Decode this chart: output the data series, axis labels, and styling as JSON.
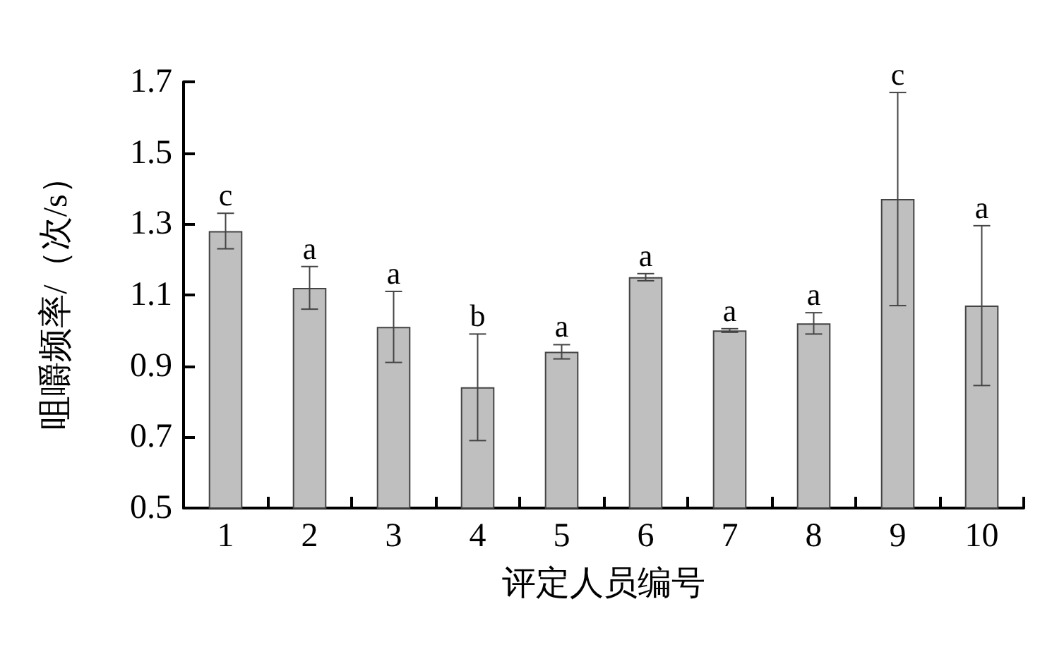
{
  "chart_data": {
    "type": "bar",
    "xlabel": "评定人员编号",
    "ylabel": "咀嚼频率/（次/s）",
    "categories": [
      "1",
      "2",
      "3",
      "4",
      "5",
      "6",
      "7",
      "8",
      "9",
      "10"
    ],
    "values": [
      1.28,
      1.12,
      1.01,
      0.84,
      0.94,
      1.15,
      1.0,
      1.02,
      1.37,
      1.07
    ],
    "errors": [
      0.05,
      0.06,
      0.1,
      0.15,
      0.02,
      0.01,
      0.005,
      0.03,
      0.3,
      0.225
    ],
    "color": "#bfbfbf",
    "ylim": [
      0.5,
      1.7
    ],
    "yticks": [
      0.5,
      0.7,
      0.9,
      1.1,
      1.3,
      1.5,
      1.7
    ],
    "grid": false,
    "annotations": [
      {
        "text": "c",
        "x": "1",
        "y": 1.33
      },
      {
        "text": "a",
        "x": "2",
        "y": 1.18
      },
      {
        "text": "a",
        "x": "3",
        "y": 1.11
      },
      {
        "text": "b",
        "x": "4",
        "y": 0.99
      },
      {
        "text": "a",
        "x": "5",
        "y": 0.96
      },
      {
        "text": "a",
        "x": "6",
        "y": 1.16
      },
      {
        "text": "a",
        "x": "7",
        "y": 1.005
      },
      {
        "text": "a",
        "x": "8",
        "y": 1.05
      },
      {
        "text": "c",
        "x": "9",
        "y": 1.67
      },
      {
        "text": "a",
        "x": "10",
        "y": 1.295
      }
    ]
  }
}
